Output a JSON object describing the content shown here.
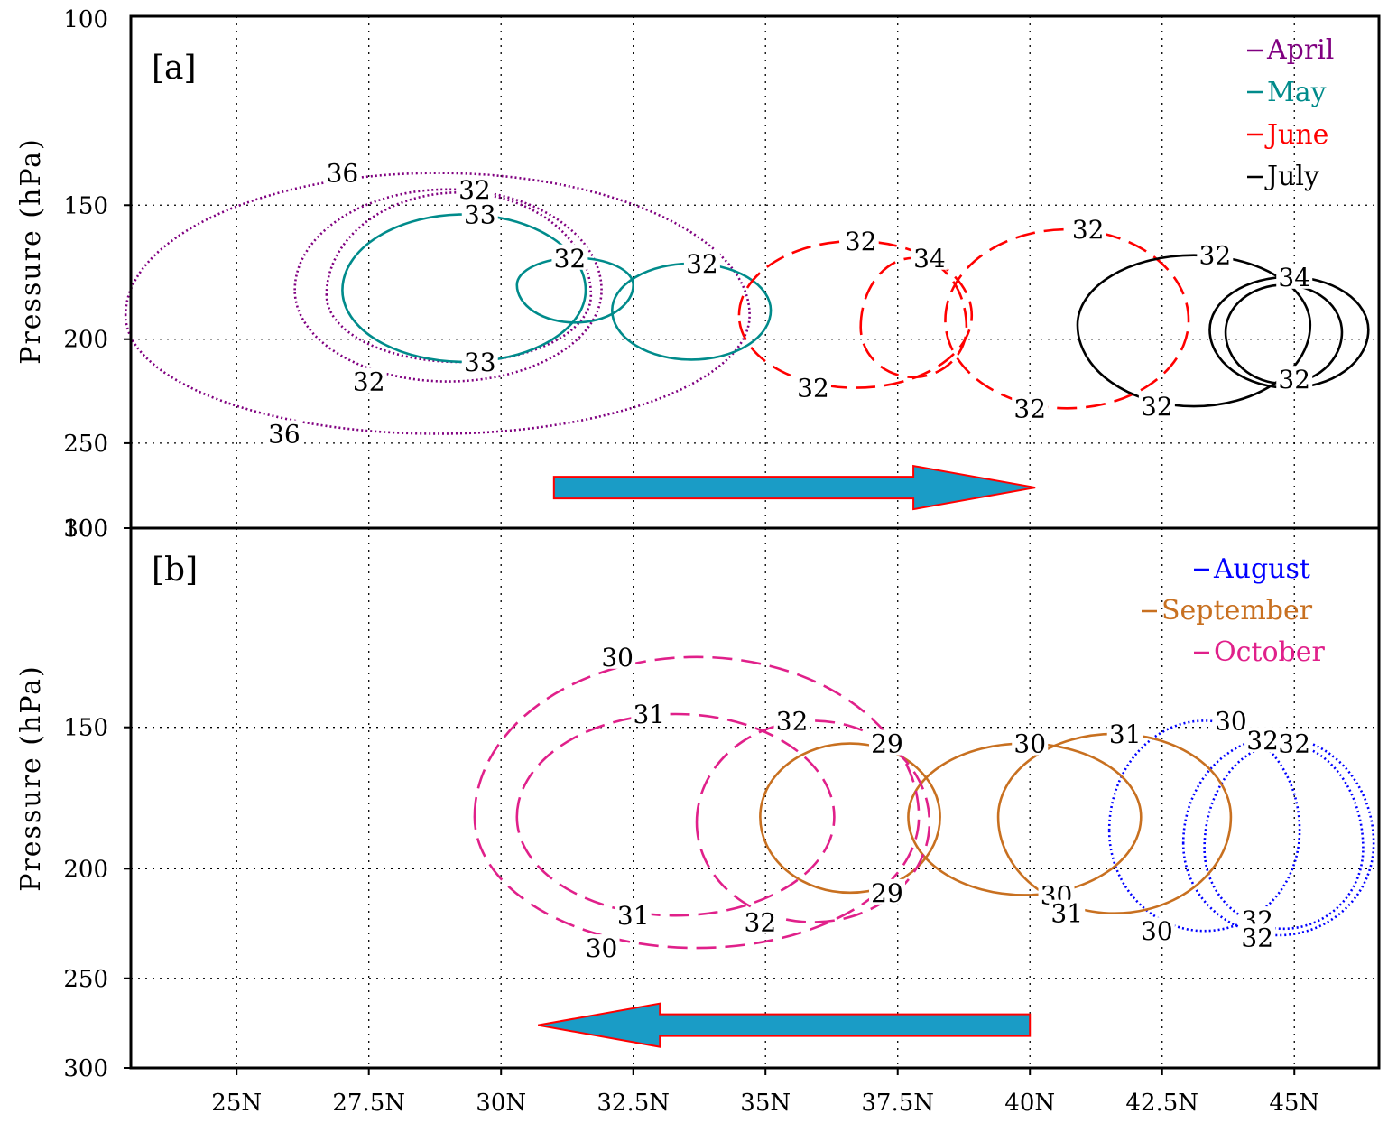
{
  "chart_data": [
    {
      "type": "line",
      "panel_label": "[a]",
      "ylabel": "Pressure (hPa)",
      "xlim": [
        23.0,
        46.6
      ],
      "ylim": [
        100,
        300
      ],
      "yscale": "log",
      "y_ticks": [
        {
          "value": 150,
          "label": "150"
        },
        {
          "value": 200,
          "label": "200"
        },
        {
          "value": 250,
          "label": "250"
        },
        {
          "value": 300,
          "label": "300"
        }
      ],
      "grid": true,
      "legend": "top-right",
      "series": [
        {
          "name": "April",
          "color": "#800080",
          "dash": "dotted",
          "contours": [
            {
              "label": "36",
              "cx": 28.8,
              "cy": 190,
              "rx": 5.9,
              "rt": 140,
              "rb": 245,
              "label_pos": [
                [
                  27.0,
                  140
                ],
                [
                  25.9,
                  245
                ]
              ]
            },
            {
              "label": "32",
              "cx": 29.0,
              "cy": 180,
              "rx": 2.9,
              "rt": 145,
              "rb": 219,
              "label_pos": [
                [
                  29.5,
                  145
                ],
                [
                  27.5,
                  219
                ]
              ]
            },
            {
              "label": "32",
              "cx": 29.2,
              "cy": 182,
              "rx": 2.5,
              "rt": 146,
              "rb": 210
            }
          ]
        },
        {
          "name": "May",
          "color": "#008b8b",
          "dash": "solid",
          "contours": [
            {
              "label": "33",
              "cx": 29.3,
              "cy": 180,
              "rx": 2.3,
              "rt": 153,
              "rb": 210,
              "label_pos": [
                [
                  29.6,
                  153
                ],
                [
                  29.6,
                  210
                ]
              ]
            },
            {
              "label": "32",
              "cx": 31.4,
              "cy": 178,
              "rx": 1.1,
              "rt": 168,
              "rb": 193,
              "label_pos": [
                [
                  31.3,
                  168
                ]
              ]
            },
            {
              "label": "32",
              "cx": 33.6,
              "cy": 188,
              "rx": 1.5,
              "rt": 170,
              "rb": 209,
              "label_pos": [
                [
                  33.8,
                  170
                ]
              ]
            }
          ]
        },
        {
          "name": "June",
          "color": "#ff0000",
          "dash": "dashed",
          "contours": [
            {
              "label": "32",
              "cx": 36.7,
              "cy": 190,
              "rx": 2.2,
              "rt": 162,
              "rb": 222,
              "label_pos": [
                [
                  36.8,
                  162
                ],
                [
                  35.9,
                  222
                ]
              ]
            },
            {
              "label": "34",
              "cx": 37.8,
              "cy": 195,
              "rx": 1.0,
              "rt": 168,
              "rb": 217,
              "label_pos": [
                [
                  38.1,
                  168
                ]
              ]
            },
            {
              "label": "32",
              "cx": 40.7,
              "cy": 192,
              "rx": 2.3,
              "rt": 158,
              "rb": 232,
              "label_pos": [
                [
                  41.1,
                  158
                ],
                [
                  40.0,
                  232
                ]
              ]
            }
          ]
        },
        {
          "name": "July",
          "color": "#000000",
          "dash": "solid",
          "contours": [
            {
              "label": "32",
              "cx": 43.1,
              "cy": 194,
              "rx": 2.2,
              "rt": 167,
              "rb": 231,
              "label_pos": [
                [
                  43.5,
                  167
                ],
                [
                  42.4,
                  231
                ]
              ]
            },
            {
              "label": "34",
              "cx": 44.9,
              "cy": 196,
              "rx": 1.5,
              "rt": 175,
              "rb": 222,
              "label_pos": [
                [
                  45.0,
                  175
                ]
              ]
            },
            {
              "label": "32",
              "cx": 44.8,
              "cy": 197,
              "rx": 1.1,
              "rt": 178,
              "rb": 220,
              "label_pos": [
                [
                  45.0,
                  218
                ]
              ]
            }
          ]
        }
      ],
      "arrow": {
        "direction": "right",
        "from": [
          31.0,
          275
        ],
        "to": [
          40.1,
          275
        ]
      }
    },
    {
      "type": "line",
      "panel_label": "[b]",
      "ylabel": "Pressure (hPa)",
      "xlim": [
        23.0,
        46.6
      ],
      "ylim": [
        100,
        300
      ],
      "yscale": "log",
      "y_ticks": [
        {
          "value": 100,
          "label": "100"
        },
        {
          "value": 150,
          "label": "150"
        },
        {
          "value": 200,
          "label": "200"
        },
        {
          "value": 250,
          "label": "250"
        },
        {
          "value": 300,
          "label": "300"
        }
      ],
      "x_ticks": [
        {
          "value": 25.0,
          "label": "25N"
        },
        {
          "value": 27.5,
          "label": "27.5N"
        },
        {
          "value": 30.0,
          "label": "30N"
        },
        {
          "value": 32.5,
          "label": "32.5N"
        },
        {
          "value": 35.0,
          "label": "35N"
        },
        {
          "value": 37.5,
          "label": "37.5N"
        },
        {
          "value": 40.0,
          "label": "40N"
        },
        {
          "value": 42.5,
          "label": "42.5N"
        },
        {
          "value": 45.0,
          "label": "45N"
        }
      ],
      "grid": true,
      "legend": "top-right",
      "series": [
        {
          "name": "August",
          "color": "#0000ff",
          "dash": "dotted",
          "contours": [
            {
              "label": "30",
              "cx": 43.3,
              "cy": 185,
              "rx": 1.8,
              "rt": 148,
              "rb": 227,
              "label_pos": [
                [
                  43.8,
                  148
                ],
                [
                  42.4,
                  227
                ]
              ]
            },
            {
              "label": "32",
              "cx": 44.7,
              "cy": 190,
              "rx": 1.8,
              "rt": 153,
              "rb": 229,
              "label_pos": [
                [
                  44.4,
                  154
                ],
                [
                  44.3,
                  222
                ]
              ]
            },
            {
              "label": "32",
              "cx": 44.8,
              "cy": 192,
              "rx": 1.5,
              "rt": 155,
              "rb": 226,
              "label_pos": [
                [
                  45.0,
                  155
                ],
                [
                  44.3,
                  230
                ]
              ]
            }
          ]
        },
        {
          "name": "September",
          "color": "#c87020",
          "dash": "solid",
          "contours": [
            {
              "label": "29",
              "cx": 36.6,
              "cy": 180,
              "rx": 1.7,
              "rt": 155,
              "rb": 210,
              "label_pos": [
                [
                  37.3,
                  155
                ],
                [
                  37.3,
                  210
                ]
              ]
            },
            {
              "label": "30",
              "cx": 39.9,
              "cy": 180,
              "rx": 2.2,
              "rt": 155,
              "rb": 211,
              "label_pos": [
                [
                  40.0,
                  155
                ],
                [
                  40.5,
                  211
                ]
              ]
            },
            {
              "label": "31",
              "cx": 41.6,
              "cy": 180,
              "rx": 2.2,
              "rt": 152,
              "rb": 219,
              "label_pos": [
                [
                  41.8,
                  152
                ],
                [
                  40.7,
                  219
                ]
              ]
            }
          ]
        },
        {
          "name": "October",
          "color": "#e0208a",
          "dash": "dashed",
          "contours": [
            {
              "label": "30",
              "cx": 33.7,
              "cy": 180,
              "rx": 4.2,
              "rt": 130,
              "rb": 235,
              "label_pos": [
                [
                  32.2,
                  130
                ],
                [
                  31.9,
                  235
                ]
              ]
            },
            {
              "label": "31",
              "cx": 33.3,
              "cy": 180,
              "rx": 3.0,
              "rt": 146,
              "rb": 220,
              "label_pos": [
                [
                  32.8,
                  146
                ],
                [
                  32.5,
                  220
                ]
              ]
            },
            {
              "label": "32",
              "cx": 35.9,
              "cy": 182,
              "rx": 2.2,
              "rt": 148,
              "rb": 223,
              "label_pos": [
                [
                  35.5,
                  148
                ],
                [
                  34.9,
                  223
                ]
              ]
            }
          ]
        }
      ],
      "arrow": {
        "direction": "left",
        "from": [
          40.0,
          275
        ],
        "to": [
          30.7,
          275
        ]
      }
    }
  ],
  "legend_a": [
    "April",
    "May",
    "June",
    "July"
  ],
  "legend_b": [
    "August",
    "September",
    "October"
  ],
  "colors": {
    "arrow_fill": "#1a9cc6",
    "arrow_stroke": "#ff0000",
    "grid": "#000000"
  }
}
